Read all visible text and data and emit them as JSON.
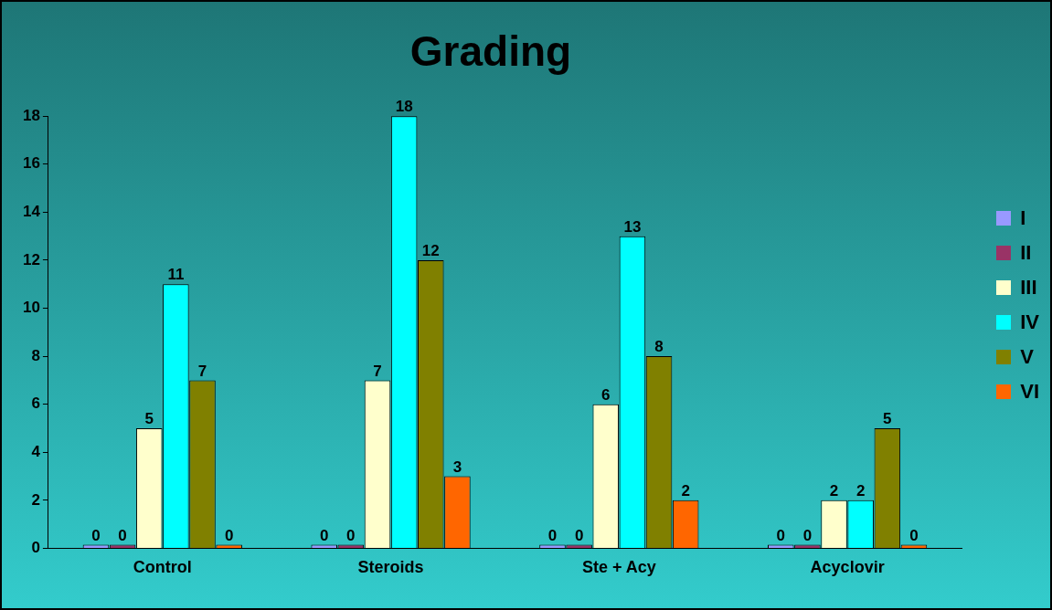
{
  "chart_data": {
    "type": "bar",
    "title": "Grading",
    "categories": [
      "Control",
      "Steroids",
      "Ste + Acy",
      "Acyclovir"
    ],
    "series": [
      {
        "name": "I",
        "color": "#9999ff",
        "values": [
          0,
          0,
          0,
          0
        ]
      },
      {
        "name": "II",
        "color": "#993366",
        "values": [
          0,
          0,
          0,
          0
        ]
      },
      {
        "name": "III",
        "color": "#ffffcc",
        "values": [
          5,
          7,
          6,
          2
        ]
      },
      {
        "name": "IV",
        "color": "#00ffff",
        "values": [
          11,
          18,
          13,
          2
        ]
      },
      {
        "name": "V",
        "color": "#808000",
        "values": [
          7,
          12,
          8,
          5
        ]
      },
      {
        "name": "VI",
        "color": "#ff6600",
        "values": [
          0,
          3,
          2,
          0
        ]
      }
    ],
    "ylim": [
      0,
      18
    ],
    "yticks": [
      0,
      2,
      4,
      6,
      8,
      10,
      12,
      14,
      16,
      18
    ],
    "grid": false,
    "legend": "right",
    "data_labels": true
  }
}
